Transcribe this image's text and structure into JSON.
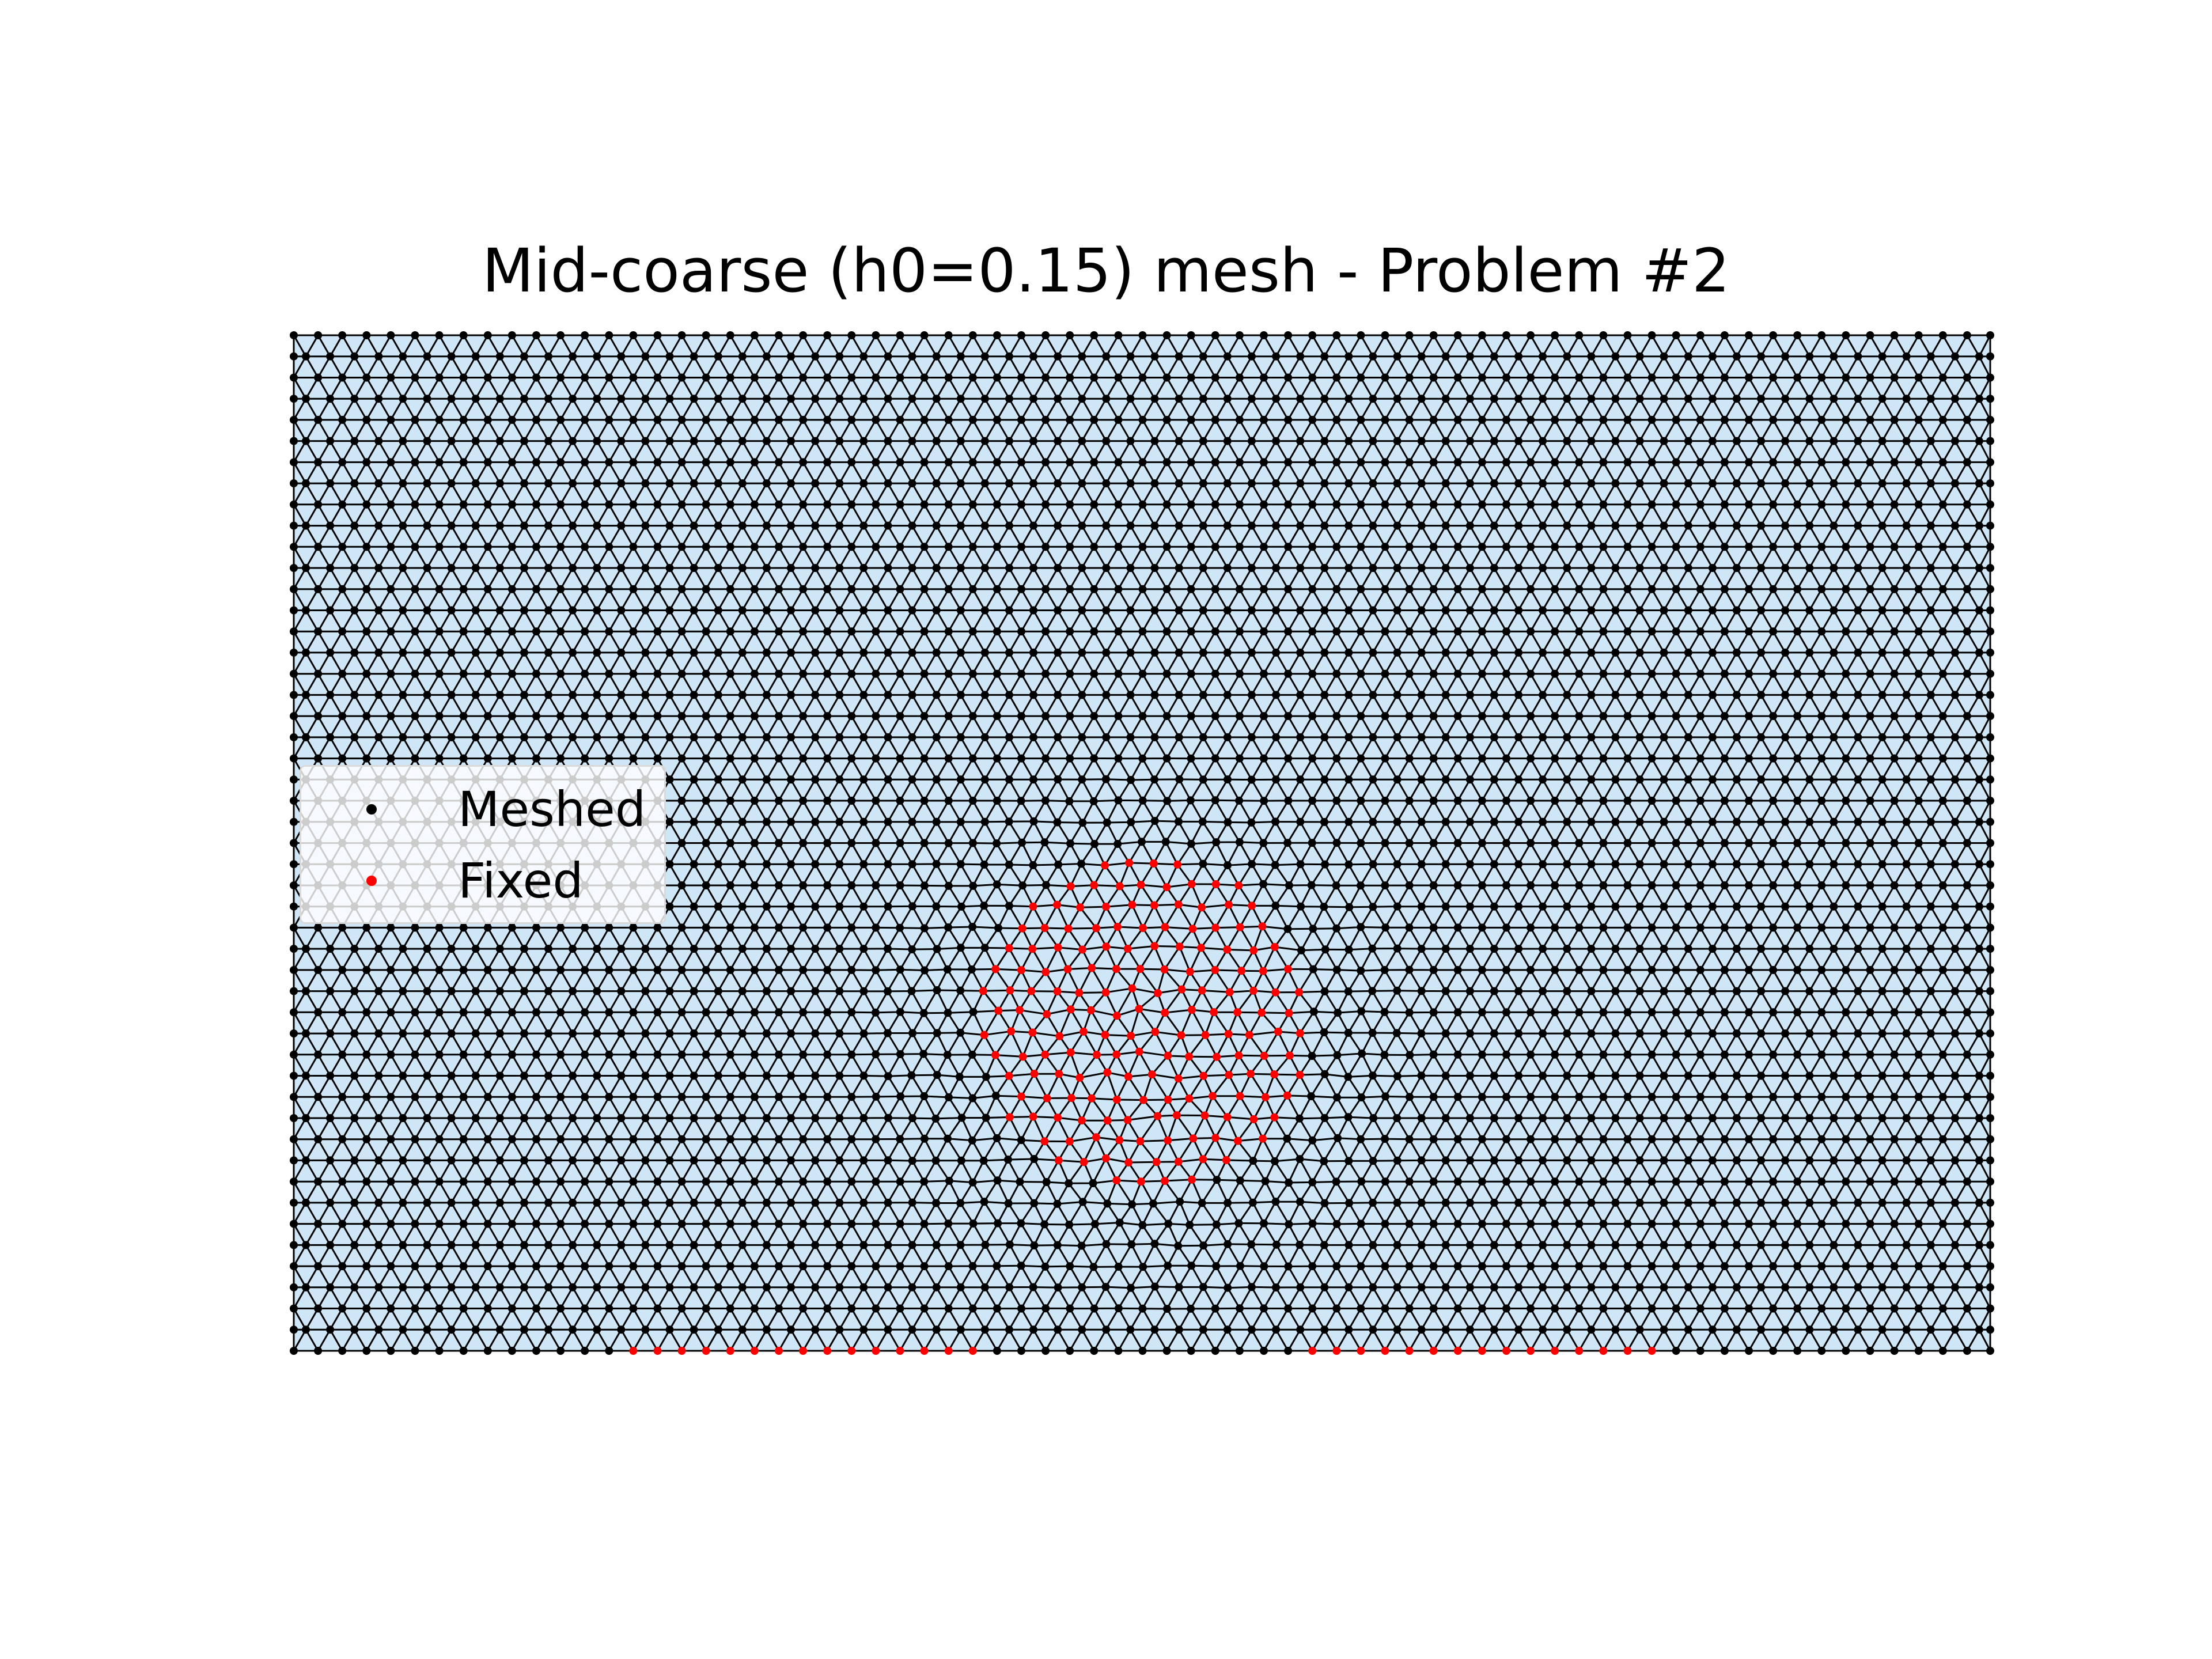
{
  "figure": {
    "title": "Mid-coarse (h0=0.15) mesh - Problem #2"
  },
  "legend": {
    "placement": "center-left",
    "items": [
      {
        "label": "Meshed",
        "color": "#000000"
      },
      {
        "label": "Fixed",
        "color": "#ff0000"
      }
    ]
  },
  "colors": {
    "fill": "#cfe6f7",
    "edge": "#000000",
    "meshed": "#000000",
    "fixed": "#ff0000"
  }
}
